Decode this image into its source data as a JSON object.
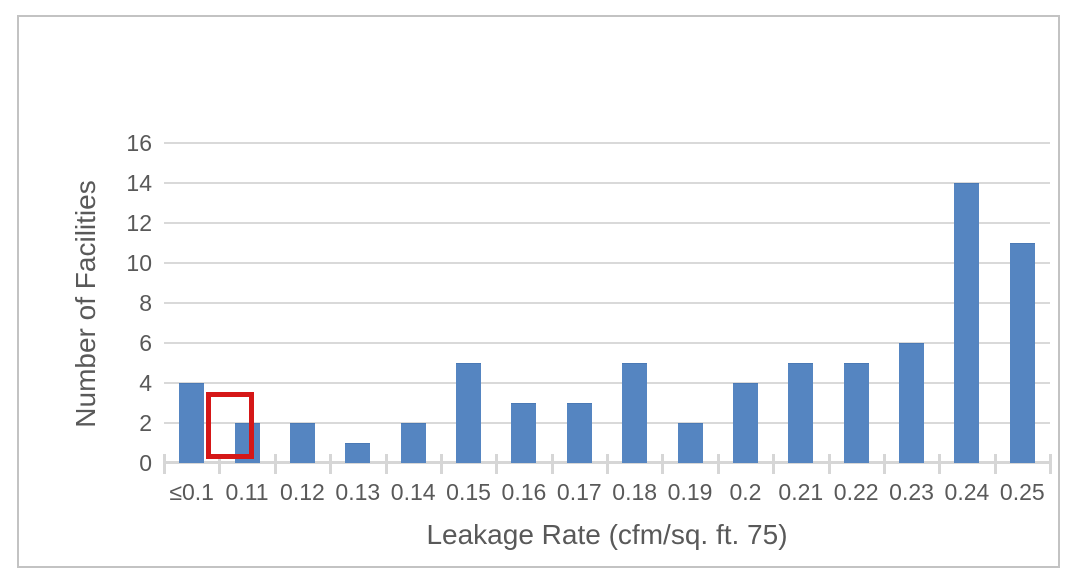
{
  "chart_data": {
    "type": "bar",
    "categories": [
      "≤0.1",
      "0.11",
      "0.12",
      "0.13",
      "0.14",
      "0.15",
      "0.16",
      "0.17",
      "0.18",
      "0.19",
      "0.2",
      "0.21",
      "0.22",
      "0.23",
      "0.24",
      "0.25"
    ],
    "values": [
      4,
      2,
      2,
      1,
      2,
      5,
      3,
      3,
      5,
      2,
      4,
      5,
      5,
      6,
      14,
      11
    ],
    "title": "",
    "xlabel": "Leakage Rate (cfm/sq. ft. 75)",
    "ylabel": "Number of Facilities",
    "ylim": [
      0,
      16
    ],
    "ytick_step": 2,
    "grid": true,
    "legend": "none",
    "bar_color": "#5585c1",
    "bar_border_color": "#4a79b5",
    "highlight": {
      "category": "0.11",
      "note": "red annotation rectangle around the 0.11 bar",
      "color": "#d51717"
    }
  },
  "colors": {
    "text": "#595959",
    "gridline": "#d9d9d9",
    "axis": "#d6d6d6",
    "frame_border": "#c3c3c3",
    "background": "#ffffff"
  }
}
